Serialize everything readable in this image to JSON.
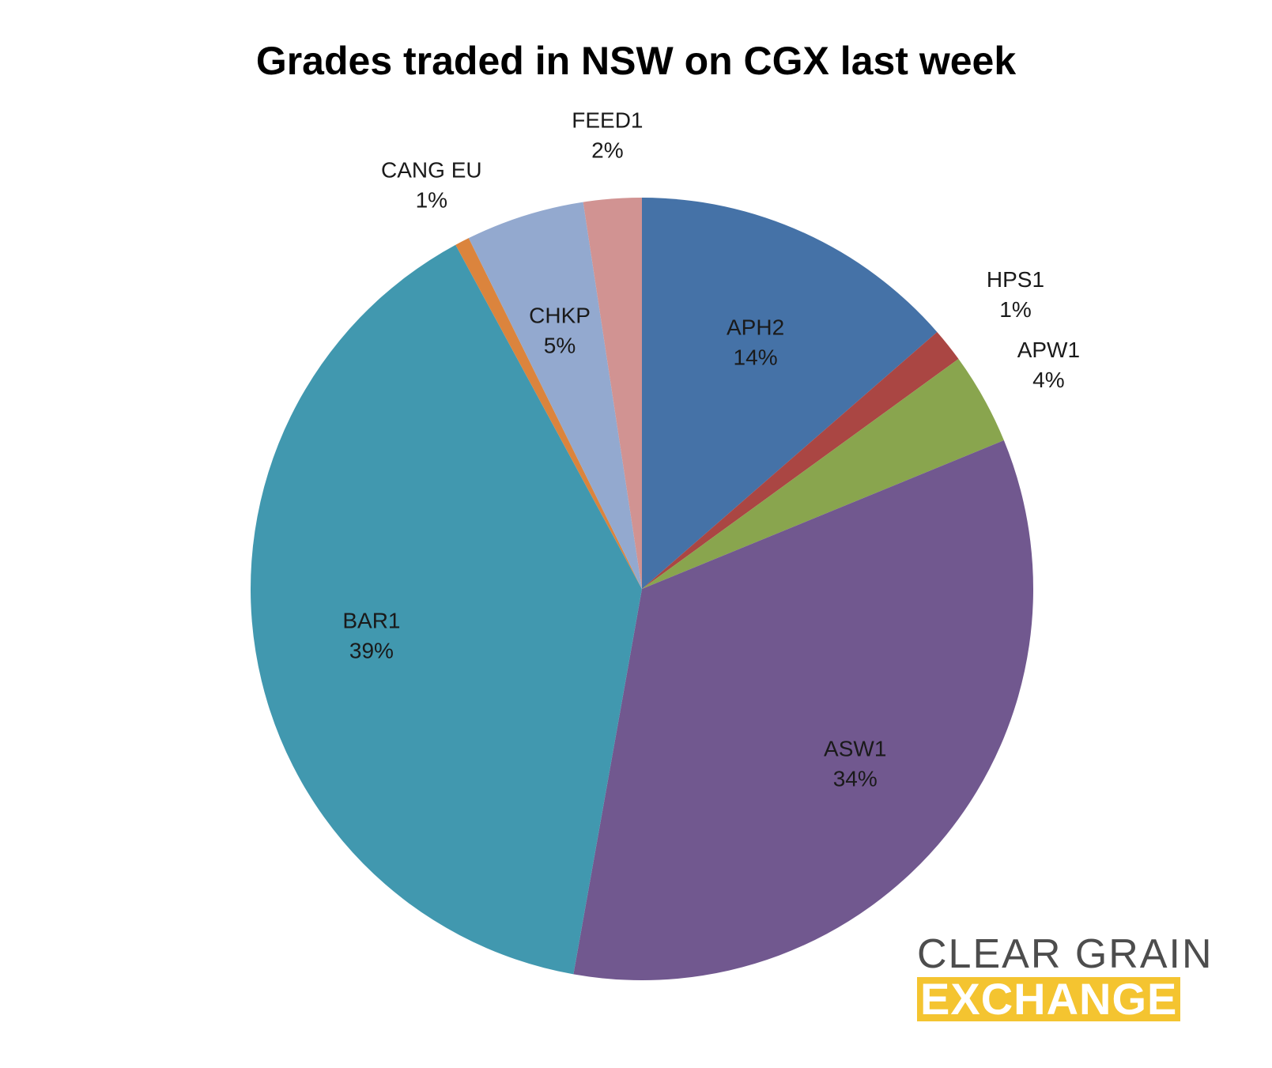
{
  "chart_data": {
    "type": "pie",
    "title": "Grades traded in NSW on CGX last week",
    "slices": [
      {
        "label": "APH2",
        "percent_label": "14%",
        "value": 13.6,
        "color": "#4572A7"
      },
      {
        "label": "HPS1",
        "percent_label": "1%",
        "value": 1.4,
        "color": "#AA4643"
      },
      {
        "label": "APW1",
        "percent_label": "4%",
        "value": 3.8,
        "color": "#89A54E"
      },
      {
        "label": "ASW1",
        "percent_label": "34%",
        "value": 34.0,
        "color": "#71588F"
      },
      {
        "label": "BAR1",
        "percent_label": "39%",
        "value": 39.3,
        "color": "#4198AF"
      },
      {
        "label": "CANG EU",
        "percent_label": "1%",
        "value": 0.6,
        "color": "#DB843D"
      },
      {
        "label": "CHKP",
        "percent_label": "5%",
        "value": 4.9,
        "color": "#93A9CF"
      },
      {
        "label": "FEED1",
        "percent_label": "2%",
        "value": 2.4,
        "color": "#D19392"
      }
    ],
    "start_angle_deg": 0,
    "direction": "clockwise"
  },
  "logo": {
    "line1": "CLEAR GRAIN",
    "line2": "EXCHANGE",
    "accent": "#F4C430"
  }
}
